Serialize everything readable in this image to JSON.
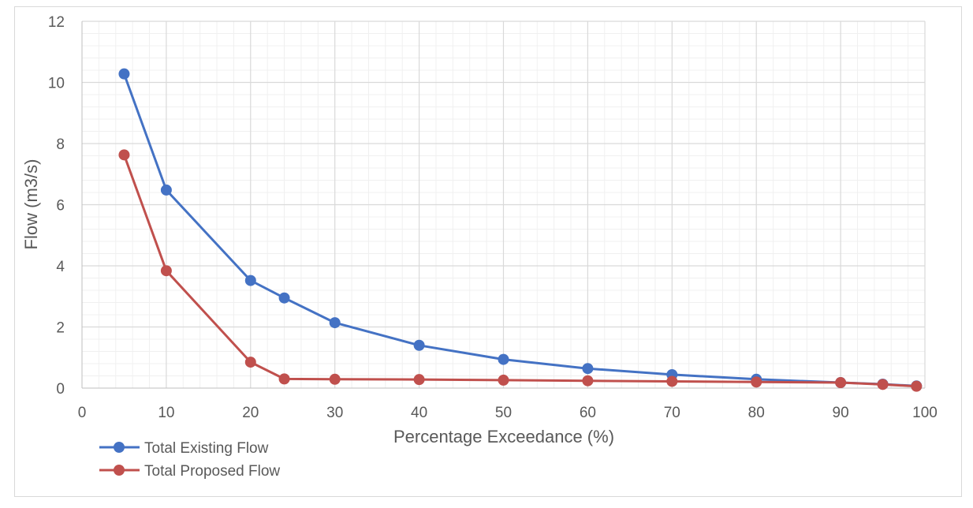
{
  "chart_data": {
    "type": "line",
    "title": "",
    "xlabel": "Percentage Exceedance (%)",
    "ylabel": "Flow (m3/s)",
    "xlim": [
      0,
      100
    ],
    "ylim": [
      0,
      12
    ],
    "x_ticks": [
      0,
      10,
      20,
      30,
      40,
      50,
      60,
      70,
      80,
      90,
      100
    ],
    "y_ticks": [
      0,
      2,
      4,
      6,
      8,
      10,
      12
    ],
    "grid": true,
    "legend_position": "bottom-left",
    "series": [
      {
        "name": "Total Existing Flow",
        "color": "#4472c4",
        "x": [
          5,
          10,
          20,
          24,
          30,
          40,
          50,
          60,
          70,
          80,
          90,
          95,
          99
        ],
        "y": [
          10.28,
          6.48,
          3.52,
          2.95,
          2.14,
          1.4,
          0.94,
          0.64,
          0.44,
          0.29,
          0.18,
          0.13,
          0.07
        ]
      },
      {
        "name": "Total Proposed Flow",
        "color": "#c0504d",
        "x": [
          5,
          10,
          20,
          24,
          30,
          40,
          50,
          60,
          70,
          80,
          90,
          95,
          99
        ],
        "y": [
          7.63,
          3.84,
          0.85,
          0.3,
          0.29,
          0.28,
          0.26,
          0.24,
          0.22,
          0.2,
          0.18,
          0.12,
          0.06
        ]
      }
    ]
  }
}
